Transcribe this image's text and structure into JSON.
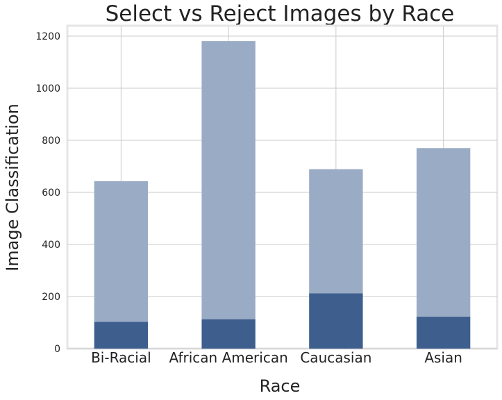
{
  "chart_data": {
    "type": "bar",
    "stacked": true,
    "title": "Select vs Reject Images by Race",
    "xlabel": "Race",
    "ylabel": "Image Classification",
    "categories": [
      "Bi-Racial",
      "African American",
      "Caucasian",
      "Asian"
    ],
    "series": [
      {
        "values": [
          103,
          113,
          212,
          123
        ],
        "color": "#3e5f8e"
      },
      {
        "values": [
          540,
          1068,
          477,
          647
        ],
        "color": "#9aabc5"
      }
    ],
    "ylim": [
      0,
      1240
    ],
    "yticks": [
      0,
      200,
      400,
      600,
      800,
      1000,
      1200
    ],
    "grid": true
  }
}
